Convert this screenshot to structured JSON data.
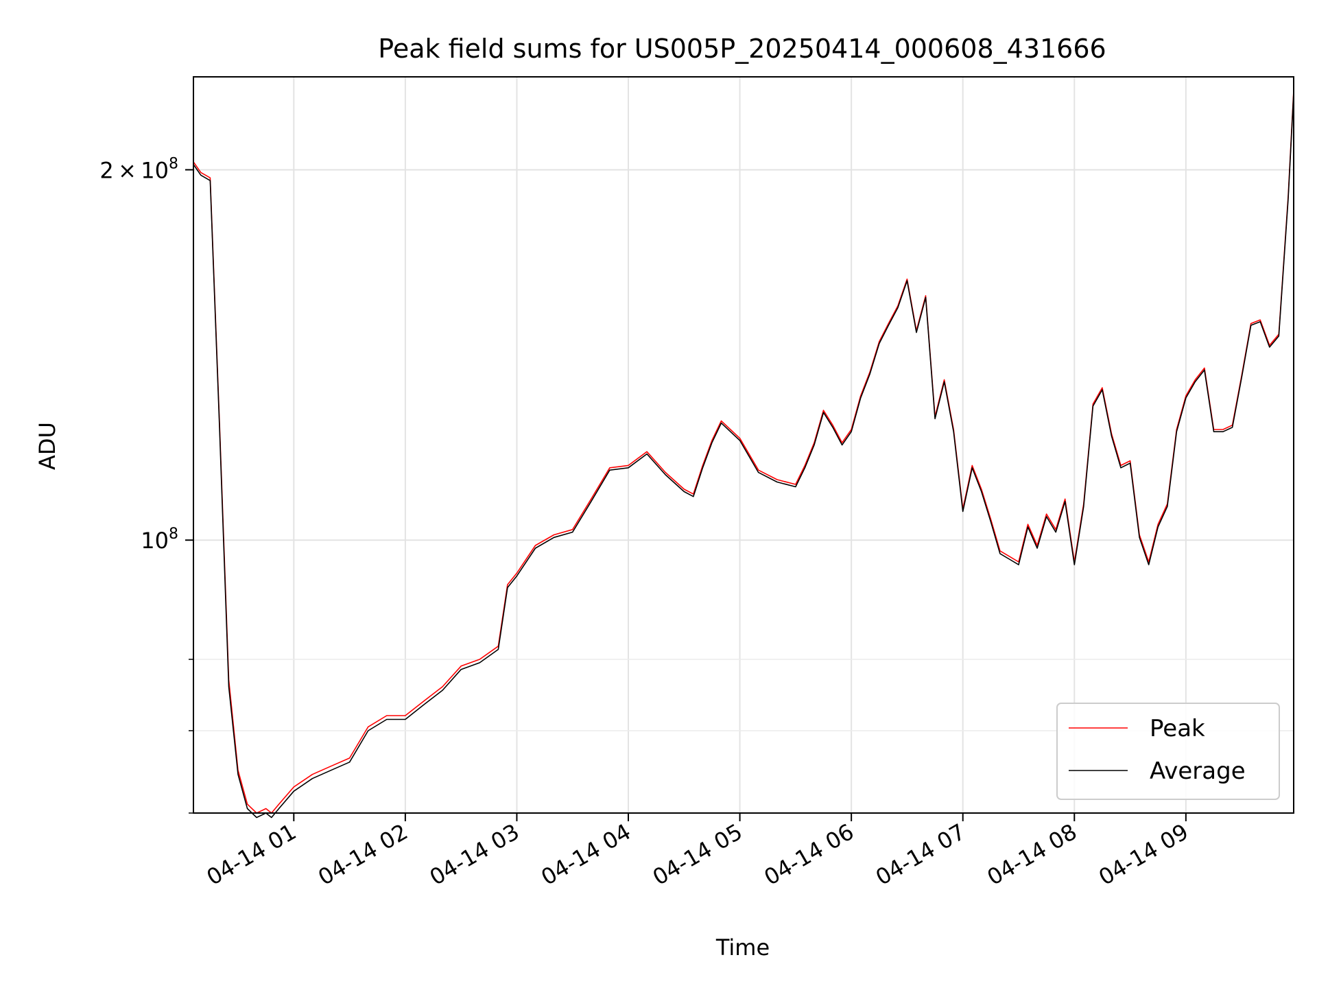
{
  "chart_data": {
    "type": "line",
    "title": "Peak field sums for US005P_20250414_000608_431666",
    "xlabel": "Time",
    "ylabel": "ADU",
    "x_range": [
      "2025-04-14 00:06",
      "2025-04-14 09:58"
    ],
    "y_scale": "log",
    "ylim": [
      60000000,
      238000000
    ],
    "grid": true,
    "legend_position": "lower right",
    "x_ticks": [
      "04-14 01",
      "04-14 02",
      "04-14 03",
      "04-14 04",
      "04-14 05",
      "04-14 06",
      "04-14 07",
      "04-14 08",
      "04-14 09"
    ],
    "y_major_ticks": [
      {
        "value": 100000000,
        "mantissa": "",
        "exponent": "8"
      },
      {
        "value": 200000000,
        "mantissa": "2",
        "exponent": "8"
      }
    ],
    "y_minor_ticks": [
      60000000,
      70000000,
      80000000
    ],
    "colors": {
      "Peak": "#ff0000",
      "Average": "#000000"
    },
    "x": [
      "00:06",
      "00:10",
      "00:15",
      "00:20",
      "00:25",
      "00:30",
      "00:35",
      "00:40",
      "00:45",
      "00:48",
      "00:52",
      "01:00",
      "01:10",
      "01:20",
      "01:30",
      "01:40",
      "01:50",
      "02:00",
      "02:10",
      "02:20",
      "02:30",
      "02:40",
      "02:50",
      "02:55",
      "03:00",
      "03:10",
      "03:20",
      "03:30",
      "03:40",
      "03:50",
      "04:00",
      "04:10",
      "04:20",
      "04:30",
      "04:35",
      "04:40",
      "04:45",
      "04:50",
      "05:00",
      "05:10",
      "05:20",
      "05:30",
      "05:35",
      "05:40",
      "05:45",
      "05:50",
      "05:55",
      "06:00",
      "06:05",
      "06:10",
      "06:15",
      "06:20",
      "06:25",
      "06:30",
      "06:35",
      "06:40",
      "06:45",
      "06:50",
      "06:55",
      "07:00",
      "07:05",
      "07:10",
      "07:15",
      "07:20",
      "07:25",
      "07:30",
      "07:35",
      "07:40",
      "07:45",
      "07:50",
      "07:55",
      "08:00",
      "08:05",
      "08:10",
      "08:15",
      "08:20",
      "08:25",
      "08:30",
      "08:35",
      "08:40",
      "08:45",
      "08:50",
      "08:55",
      "09:00",
      "09:05",
      "09:10",
      "09:15",
      "09:20",
      "09:25",
      "09:30",
      "09:35",
      "09:40",
      "09:45",
      "09:50",
      "09:55",
      "09:58"
    ],
    "series": [
      {
        "name": "Peak",
        "values": [
          203,
          199,
          197,
          125,
          77,
          65,
          61,
          60,
          60.5,
          60,
          61,
          63,
          64.5,
          65.5,
          66.5,
          70.5,
          72,
          72,
          74,
          76,
          79,
          80,
          82,
          92,
          94,
          99,
          101,
          102,
          108,
          114.5,
          115,
          118,
          113.5,
          110,
          109,
          115,
          120.5,
          125,
          121,
          114,
          112,
          111,
          115,
          120,
          127.5,
          124,
          120,
          123,
          131,
          137,
          145,
          150,
          155,
          163,
          148,
          158,
          126,
          135,
          123,
          106,
          115,
          110,
          104,
          98,
          97,
          96,
          103,
          99,
          105,
          102,
          108,
          96,
          107,
          129,
          133,
          122,
          115,
          116,
          101,
          96,
          103,
          107,
          123,
          131,
          135,
          138,
          123,
          123,
          124,
          136,
          150,
          151,
          144,
          147,
          190,
          232
        ]
      },
      {
        "name": "Average",
        "values": [
          202,
          198,
          196,
          124,
          76,
          64.5,
          60.5,
          59.5,
          60,
          59.5,
          60.5,
          62.5,
          64,
          65,
          66,
          70,
          71.5,
          71.5,
          73.5,
          75.5,
          78.5,
          79.5,
          81.5,
          91.5,
          93.5,
          98.5,
          100.5,
          101.5,
          107.5,
          114,
          114.5,
          117.5,
          113,
          109.5,
          108.5,
          114.5,
          120,
          124.5,
          120.5,
          113.5,
          111.5,
          110.5,
          114.5,
          119.5,
          127,
          123.5,
          119.5,
          122.5,
          130.5,
          136.5,
          144.5,
          149.5,
          154.5,
          162.5,
          147.5,
          157.5,
          125.5,
          134.5,
          122.5,
          105.5,
          114.5,
          109.5,
          103.5,
          97.5,
          96.5,
          95.5,
          102.5,
          98.5,
          104.5,
          101.5,
          107.5,
          95.5,
          106.5,
          128.5,
          132.5,
          121.5,
          114.5,
          115.5,
          100.5,
          95.5,
          102.5,
          106.5,
          122.5,
          130.5,
          134.5,
          137.5,
          122.5,
          122.5,
          123.5,
          135.5,
          149.5,
          150.5,
          143.5,
          146.5,
          189,
          231
        ]
      }
    ]
  }
}
